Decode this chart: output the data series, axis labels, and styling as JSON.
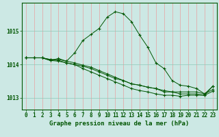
{
  "title": "Graphe pression niveau de la mer (hPa)",
  "bg_color": "#cce8e4",
  "grid_color_v": "#e8a0a0",
  "grid_color_h": "#8cc8b8",
  "line_color": "#005500",
  "hours": [
    0,
    1,
    2,
    3,
    4,
    5,
    6,
    7,
    8,
    9,
    10,
    11,
    12,
    13,
    14,
    15,
    16,
    17,
    18,
    19,
    20,
    21,
    22,
    23
  ],
  "series1": [
    1014.2,
    1014.2,
    1014.2,
    1014.12,
    1014.18,
    1014.1,
    1014.35,
    1014.72,
    1014.9,
    1015.08,
    1015.42,
    1015.58,
    1015.52,
    1015.28,
    1014.88,
    1014.52,
    1014.05,
    1013.88,
    1013.52,
    1013.38,
    1013.35,
    1013.28,
    1013.12,
    1013.35
  ],
  "series2": [
    1014.2,
    1014.2,
    1014.2,
    1014.12,
    1014.1,
    1014.05,
    1014.0,
    1013.88,
    1013.78,
    1013.68,
    1013.58,
    1013.48,
    1013.38,
    1013.28,
    1013.22,
    1013.18,
    1013.12,
    1013.08,
    1013.08,
    1013.05,
    1013.08,
    1013.08,
    1013.08,
    1013.35
  ],
  "series3": [
    1014.2,
    1014.2,
    1014.2,
    1014.15,
    1014.15,
    1014.1,
    1014.05,
    1013.98,
    1013.92,
    1013.82,
    1013.72,
    1013.62,
    1013.52,
    1013.42,
    1013.38,
    1013.32,
    1013.28,
    1013.22,
    1013.18,
    1013.18,
    1013.18,
    1013.18,
    1013.12,
    1013.25
  ],
  "series4": [
    1014.2,
    1014.2,
    1014.2,
    1014.15,
    1014.12,
    1014.05,
    1014.0,
    1013.95,
    1013.88,
    1013.78,
    1013.68,
    1013.58,
    1013.52,
    1013.42,
    1013.38,
    1013.32,
    1013.28,
    1013.18,
    1013.18,
    1013.12,
    1013.12,
    1013.12,
    1013.08,
    1013.2
  ],
  "ylim": [
    1012.65,
    1015.85
  ],
  "yticks": [
    1013,
    1014,
    1015
  ],
  "xticks": [
    0,
    1,
    2,
    3,
    4,
    5,
    6,
    7,
    8,
    9,
    10,
    11,
    12,
    13,
    14,
    15,
    16,
    17,
    18,
    19,
    20,
    21,
    22,
    23
  ],
  "title_fontsize": 6.5,
  "tick_fontsize": 5.5
}
